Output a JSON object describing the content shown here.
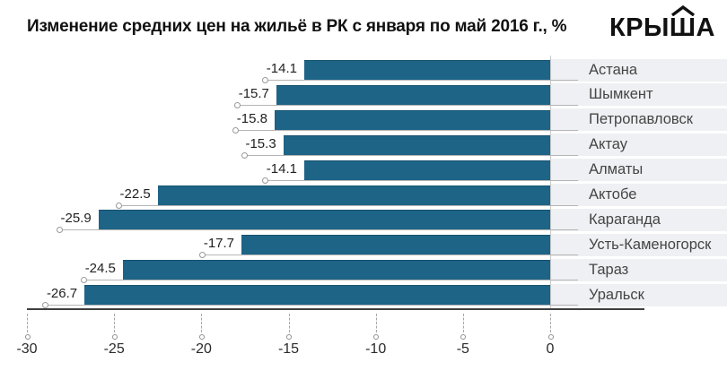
{
  "brand": {
    "name": "КРЫША",
    "roof_over_letter": "Ш",
    "color": "#111111"
  },
  "chart_data": {
    "type": "bar",
    "orientation": "horizontal",
    "title": "Изменение средних цен на жильё в РК с января по май 2016 г., %",
    "categories": [
      "Астана",
      "Шымкент",
      "Петропавловск",
      "Актау",
      "Алматы",
      "Актобе",
      "Караганда",
      "Усть-Каменогорск",
      "Тараз",
      "Уральск"
    ],
    "values": [
      -14.1,
      -15.7,
      -15.8,
      -15.3,
      -14.1,
      -22.5,
      -25.9,
      -17.7,
      -24.5,
      -26.7
    ],
    "xlabel": "",
    "ylabel": "",
    "xlim": [
      -30,
      0
    ],
    "x_ticks": [
      -30,
      -25,
      -20,
      -15,
      -10,
      -5,
      0
    ],
    "legend": "none",
    "grid": "dashed tick stubs below axis with dot terminals",
    "value_labels": "left of each bar with leader line and circle marker",
    "category_side": "right of zero line on shaded row bands",
    "bar_color": "#1d6487",
    "band_color": "#eff0f3"
  }
}
